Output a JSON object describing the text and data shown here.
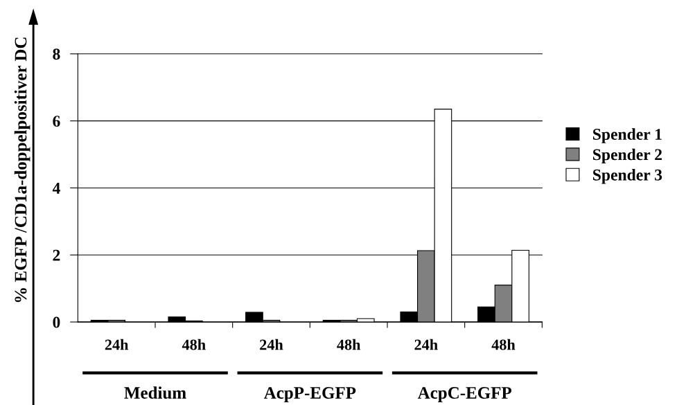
{
  "chart_data": {
    "type": "bar",
    "ylabel": "% EGFP /CD1a-doppelpositiver DC",
    "categories": [
      "24h",
      "48h",
      "24h",
      "48h",
      "24h",
      "48h"
    ],
    "annotations": [
      "Medium",
      "AcpP-EGFP",
      "AcpC-EGFP"
    ],
    "series": [
      {
        "name": "Spender 1",
        "color": "#000000",
        "values": [
          0.05,
          0.15,
          0.29,
          0.05,
          0.3,
          0.45
        ]
      },
      {
        "name": "Spender 2",
        "color": "#808080",
        "values": [
          0.05,
          0.03,
          0.05,
          0.05,
          2.13,
          1.1
        ]
      },
      {
        "name": "Spender 3",
        "color": "#ffffff",
        "values": [
          null,
          null,
          null,
          0.1,
          6.35,
          2.14
        ]
      }
    ],
    "ylim": [
      0,
      8
    ],
    "yticks": [
      0,
      2,
      4,
      6,
      8
    ],
    "grid": "y",
    "legend": "right"
  }
}
